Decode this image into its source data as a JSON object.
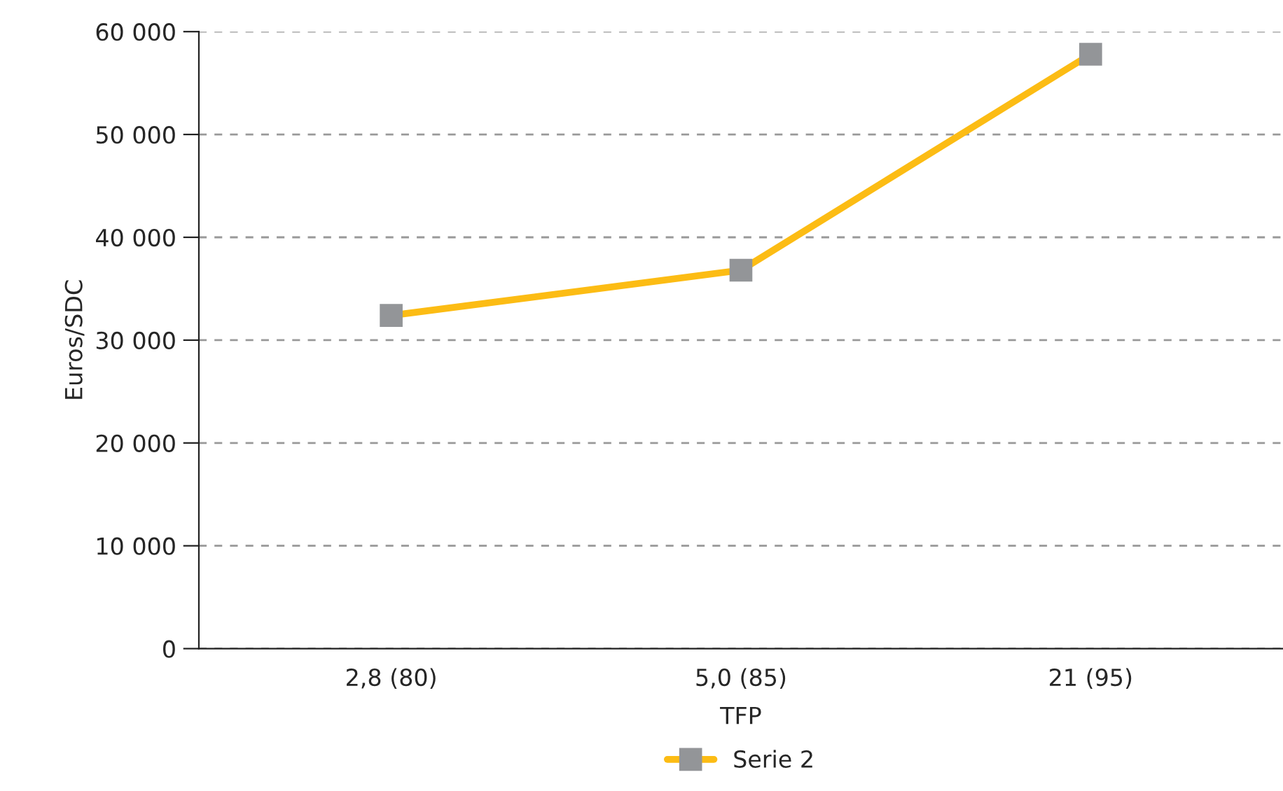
{
  "chart_data": {
    "type": "line",
    "xlabel": "TFP",
    "ylabel": "Euros/SDC",
    "categories": [
      "2,8 (80)",
      "5,0 (85)",
      "21 (95)"
    ],
    "series": [
      {
        "name": "Serie 2",
        "color": "#fcbc14",
        "values": [
          32400,
          36800,
          57800
        ]
      }
    ],
    "ylim": [
      0,
      60000
    ],
    "yticks": [
      {
        "value": 0,
        "label": "0"
      },
      {
        "value": 10000,
        "label": "10 000"
      },
      {
        "value": 20000,
        "label": "20 000"
      },
      {
        "value": 30000,
        "label": "30 000"
      },
      {
        "value": 40000,
        "label": "40 000"
      },
      {
        "value": 50000,
        "label": "50 000"
      },
      {
        "value": 60000,
        "label": "60 000"
      }
    ],
    "grid": "y",
    "legend": "bottom",
    "marker": "square",
    "line_style": "solid"
  }
}
